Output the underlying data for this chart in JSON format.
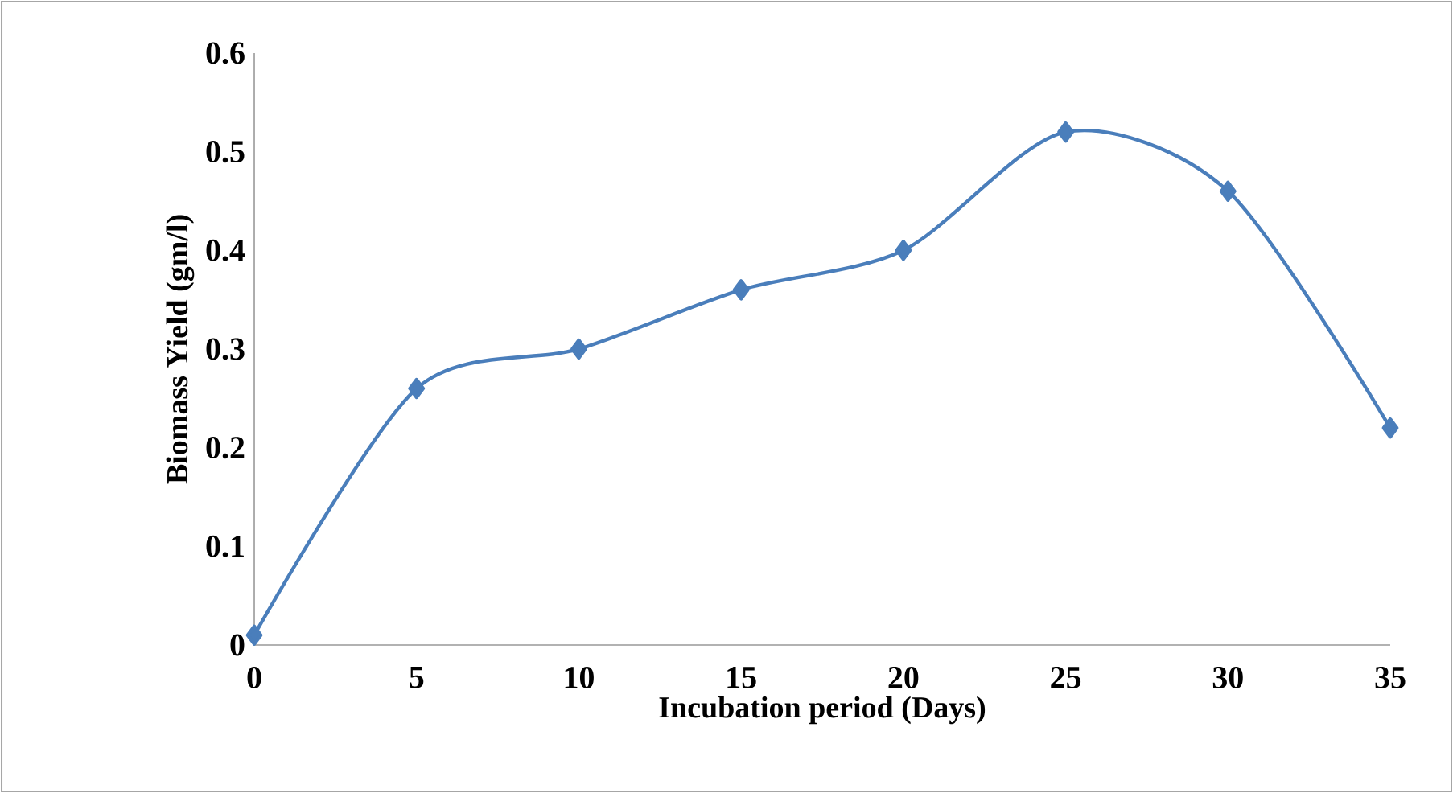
{
  "chart_data": {
    "type": "line",
    "xlabel": "Incubation period (Days)",
    "ylabel": "Biomass Yield (gm/l)",
    "categories": [
      "0",
      "5",
      "10",
      "15",
      "20",
      "25",
      "30",
      "35"
    ],
    "series": [
      {
        "color": "#4a7ebb",
        "values": [
          0.01,
          0.26,
          0.3,
          0.36,
          0.4,
          0.52,
          0.46,
          0.22
        ]
      }
    ],
    "ylim": [
      0,
      0.6
    ],
    "yticks": [
      0,
      0.1,
      0.2,
      0.3,
      0.4,
      0.5,
      0.6
    ],
    "marker": "diamond",
    "line_style": "solid"
  }
}
